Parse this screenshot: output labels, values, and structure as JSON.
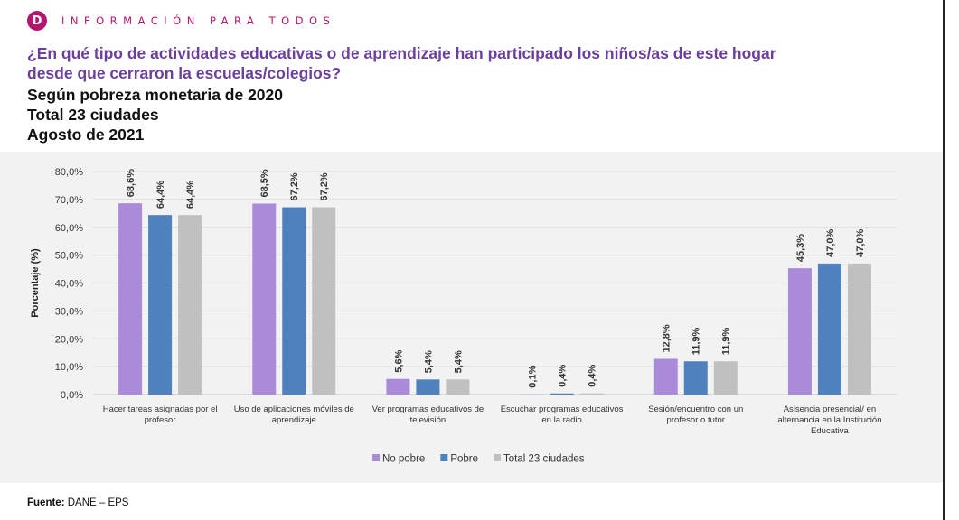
{
  "header": {
    "brand": "INFORMACIÓN PARA TODOS",
    "logo_letter": "D",
    "brand_color": "#b3166f"
  },
  "title": "¿En qué tipo de actividades educativas o de aprendizaje han participado los niños/as de este hogar desde que cerraron la escuelas/colegios?",
  "subtitles": [
    "Según pobreza monetaria de 2020",
    "Total 23 ciudades",
    "Agosto de 2021"
  ],
  "footer": {
    "label": "Fuente:",
    "text": " DANE – EPS"
  },
  "chart_data": {
    "type": "bar",
    "ylabel": "Porcentaje (%)",
    "ylim": [
      0,
      80
    ],
    "yticks": [
      "0,0%",
      "10,0%",
      "20,0%",
      "30,0%",
      "40,0%",
      "50,0%",
      "60,0%",
      "70,0%",
      "80,0%"
    ],
    "grid": true,
    "legend_position": "bottom",
    "categories": [
      [
        "Hacer tareas asignadas por el",
        "profesor"
      ],
      [
        "Uso de aplicaciones móviles de",
        "aprendizaje"
      ],
      [
        "Ver programas educativos de",
        "televisión"
      ],
      [
        "Escuchar programas educativos",
        "en la radio"
      ],
      [
        "Sesión/encuentro con un",
        "profesor o tutor"
      ],
      [
        "Asisencia presencial/ en",
        "alternancia en la Institución",
        "Educativa"
      ]
    ],
    "series": [
      {
        "name": "No pobre",
        "color": "#a98bd9",
        "values": [
          68.6,
          68.5,
          5.6,
          0.1,
          12.8,
          45.3
        ],
        "labels": [
          "68,6%",
          "68,5%",
          "5,6%",
          "0,1%",
          "12,8%",
          "45,3%"
        ]
      },
      {
        "name": "Pobre",
        "color": "#4f81bd",
        "values": [
          64.4,
          67.2,
          5.4,
          0.4,
          11.9,
          47.0
        ],
        "labels": [
          "64,4%",
          "67,2%",
          "5,4%",
          "0,4%",
          "11,9%",
          "47,0%"
        ]
      },
      {
        "name": "Total 23 ciudades",
        "color": "#c0c0c0",
        "values": [
          64.4,
          67.2,
          5.4,
          0.4,
          11.9,
          47.0
        ],
        "labels": [
          "64,4%",
          "67,2%",
          "5,4%",
          "0,4%",
          "11,9%",
          "47,0%"
        ]
      }
    ]
  }
}
